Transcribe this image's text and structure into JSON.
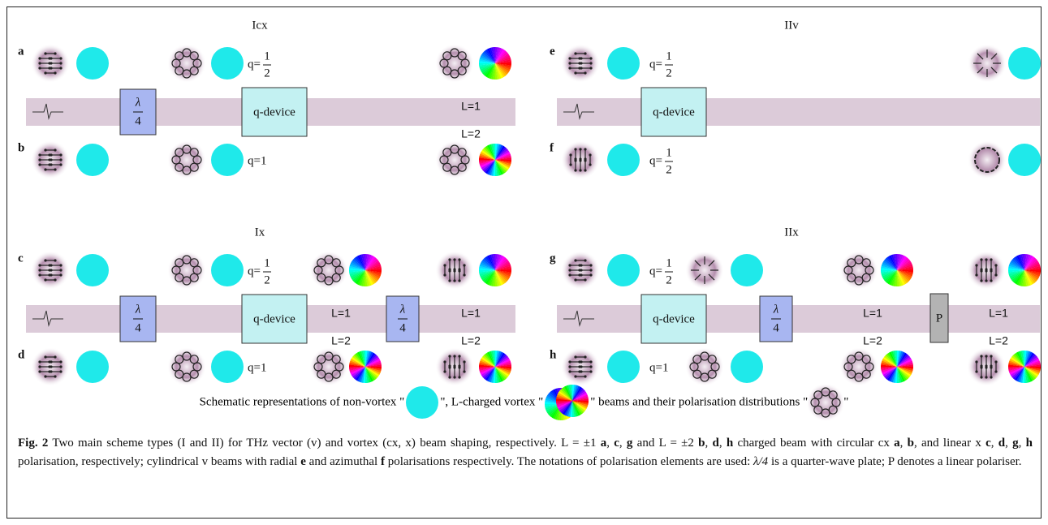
{
  "panels": [
    {
      "title": "Icx",
      "rows": [
        {
          "letter": "a",
          "q": {
            "prefix": "q=",
            "num": "1",
            "den": "2"
          },
          "L": [
            "L=1"
          ]
        },
        {
          "letter": "b",
          "q": {
            "prefix": "q=1"
          },
          "L": [
            "L=2"
          ]
        }
      ]
    },
    {
      "title": "IIv",
      "rows": [
        {
          "letter": "e",
          "q": {
            "prefix": "q=",
            "num": "1",
            "den": "2"
          },
          "L": []
        },
        {
          "letter": "f",
          "q": {
            "prefix": "q=",
            "num": "1",
            "den": "2"
          },
          "L": []
        }
      ]
    },
    {
      "title": "Ix",
      "rows": [
        {
          "letter": "c",
          "q": {
            "prefix": "q=",
            "num": "1",
            "den": "2"
          },
          "L": [
            "L=1",
            "L=1"
          ]
        },
        {
          "letter": "d",
          "q": {
            "prefix": "q=1"
          },
          "L": [
            "L=2",
            "L=2"
          ]
        }
      ]
    },
    {
      "title": "IIx",
      "rows": [
        {
          "letter": "g",
          "q": {
            "prefix": "q=",
            "num": "1",
            "den": "2"
          },
          "L": [
            "L=1",
            "L=1"
          ]
        },
        {
          "letter": "h",
          "q": {
            "prefix": "q=1"
          },
          "L": [
            "L=2",
            "L=2"
          ]
        }
      ]
    }
  ],
  "elements": {
    "q_device": "q-device",
    "waveplate": {
      "num": "λ",
      "den": "4"
    },
    "polariser": "P"
  },
  "legend": [
    "Schematic representations of non-vortex \"",
    "\", L-charged vortex \"",
    "\" beams and their polarisation distributions \"",
    "\""
  ],
  "caption": [
    {
      "text": "Fig. 2",
      "bold": true
    },
    {
      "text": " Two main scheme types (I and II) for THz vector (v) and vortex (cx, x) beam shaping, respectively. L = ±1 "
    },
    {
      "text": "a",
      "bold": true
    },
    {
      "text": ", "
    },
    {
      "text": "c",
      "bold": true
    },
    {
      "text": ", "
    },
    {
      "text": "g",
      "bold": true
    },
    {
      "text": " and L = ±2 "
    },
    {
      "text": "b",
      "bold": true
    },
    {
      "text": ", "
    },
    {
      "text": "d",
      "bold": true
    },
    {
      "text": ", "
    },
    {
      "text": "h",
      "bold": true
    },
    {
      "text": " charged beam with circular cx "
    },
    {
      "text": "a",
      "bold": true
    },
    {
      "text": ", "
    },
    {
      "text": "b",
      "bold": true
    },
    {
      "text": ", and linear x "
    },
    {
      "text": "c",
      "bold": true
    },
    {
      "text": ", "
    },
    {
      "text": "d",
      "bold": true
    },
    {
      "text": ", "
    },
    {
      "text": "g",
      "bold": true
    },
    {
      "text": ", "
    },
    {
      "text": "h",
      "bold": true
    },
    {
      "text": " polarisation, respectively; cylindrical v beams with radial "
    },
    {
      "text": "e",
      "bold": true
    },
    {
      "text": " and azimuthal "
    },
    {
      "text": "f",
      "bold": true
    },
    {
      "text": " polarisations respectively. The notations of polarisation elements are used: "
    },
    {
      "text": "λ/4",
      "italic": true
    },
    {
      "text": " is a quarter-wave plate; P denotes a linear polariser."
    }
  ]
}
